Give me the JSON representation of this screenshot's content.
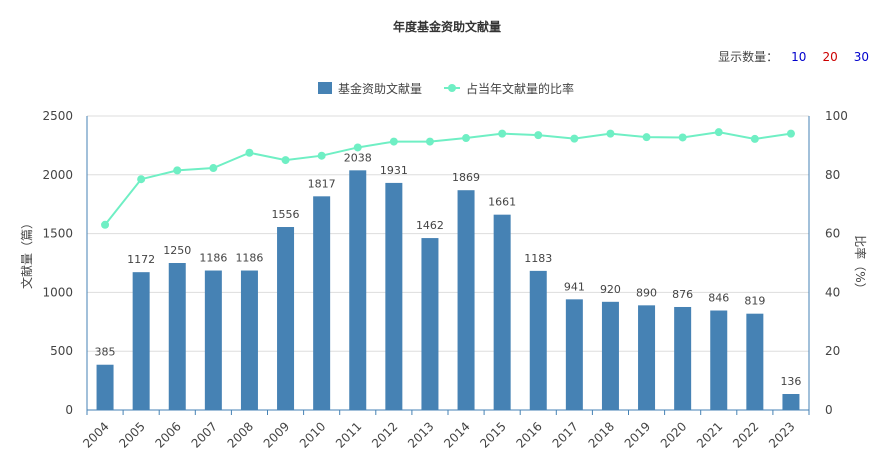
{
  "chart_title": "年度基金资助文献量",
  "count_selector": {
    "label": "显示数量：",
    "options": [
      {
        "label": "10",
        "color": "#0000cc"
      },
      {
        "label": "20",
        "color": "#cc0000"
      },
      {
        "label": "30",
        "color": "#0000cc"
      }
    ]
  },
  "chart_data": {
    "type": "bar",
    "title": "年度基金资助文献量",
    "categories": [
      "2004",
      "2005",
      "2006",
      "2007",
      "2008",
      "2009",
      "2010",
      "2011",
      "2012",
      "2013",
      "2014",
      "2015",
      "2016",
      "2017",
      "2018",
      "2019",
      "2020",
      "2021",
      "2022",
      "2023"
    ],
    "series": [
      {
        "name": "基金资助文献量",
        "type": "bar",
        "axis": "left",
        "color": "#4682b4",
        "values": [
          385,
          1172,
          1250,
          1186,
          1186,
          1556,
          1817,
          2038,
          1931,
          1462,
          1869,
          1661,
          1183,
          941,
          920,
          890,
          876,
          846,
          819,
          136
        ],
        "labels": [
          "385",
          "1172",
          "1250",
          "1186",
          "1186",
          "1556",
          "1817",
          "2038",
          "1931",
          "1462",
          "1869",
          "1661",
          "1183",
          "941",
          "920",
          "890",
          "876",
          "846",
          "819",
          "136"
        ]
      },
      {
        "name": "占当年文献量的比率",
        "type": "line",
        "axis": "right",
        "color": "#6fefc4",
        "values": [
          63,
          78.5,
          81.5,
          82.3,
          87.5,
          85,
          86.5,
          89.3,
          91.3,
          91.3,
          92.5,
          94,
          93.5,
          92.3,
          94,
          92.8,
          92.7,
          94.5,
          92.2,
          94
        ]
      }
    ],
    "ylabel": "文献量（篇）",
    "y2label": "比率（%）",
    "ylim": [
      0,
      2500
    ],
    "y2lim": [
      0,
      100
    ],
    "yticks": [
      "0",
      "500",
      "1000",
      "1500",
      "2000",
      "2500"
    ],
    "y2ticks": [
      "0",
      "20",
      "40",
      "60",
      "80",
      "100"
    ],
    "grid": true,
    "legend_position": "top-center"
  }
}
